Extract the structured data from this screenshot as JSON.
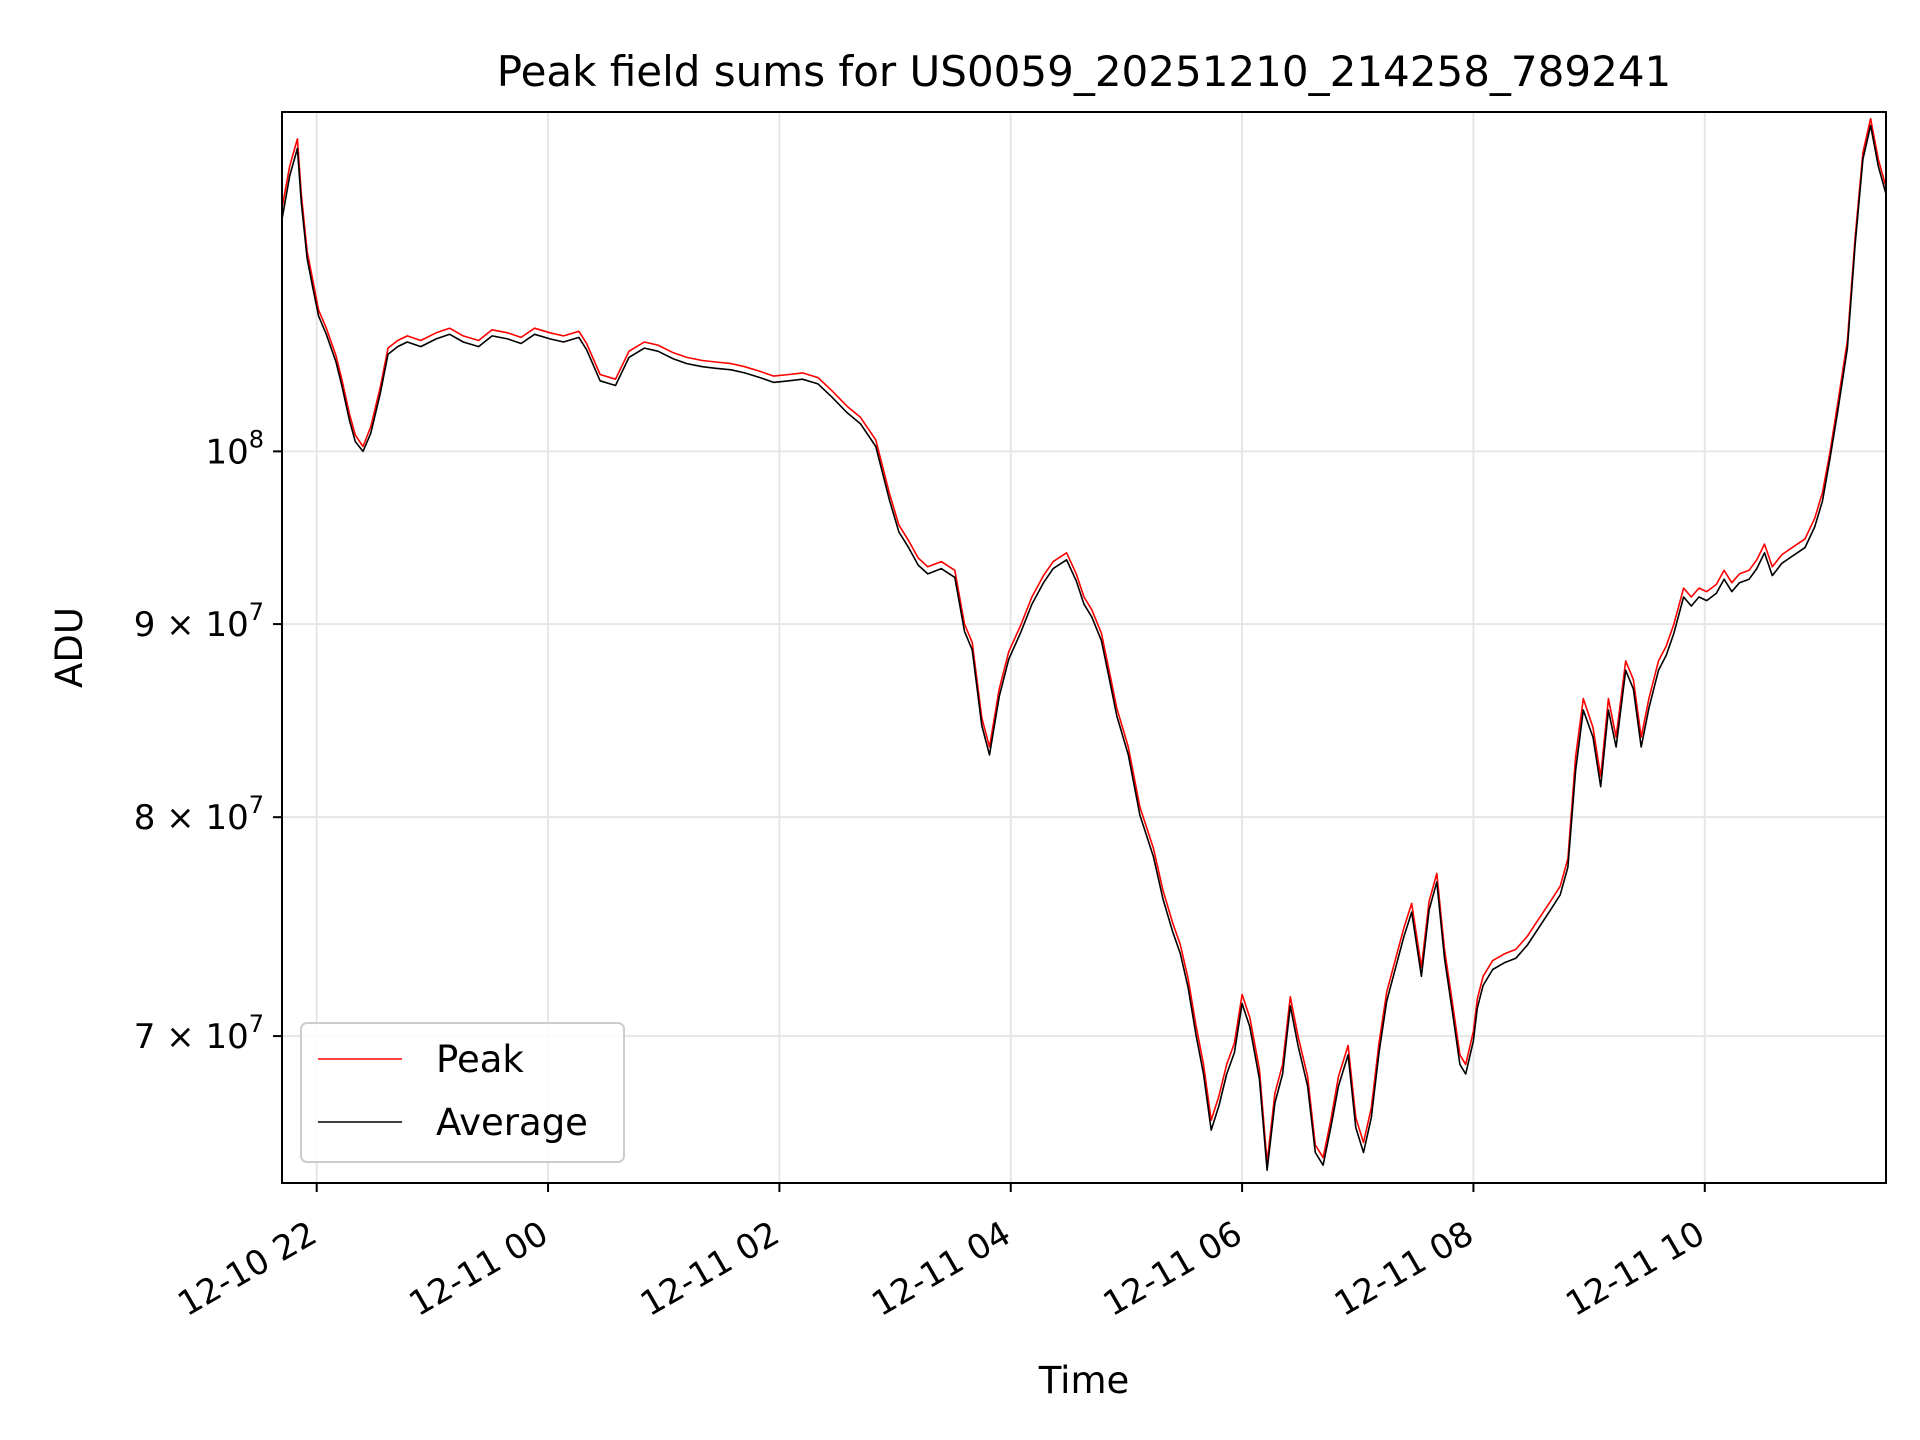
{
  "chart_data": {
    "type": "line",
    "title": "Peak field sums for US0059_20251210_214258_789241",
    "xlabel": "Time",
    "ylabel": "ADU",
    "y_scale": "log",
    "ylim": [
      64000000,
      123000000
    ],
    "xlim": [
      "2025-12-10T21:42",
      "2025-12-11T11:34"
    ],
    "grid": true,
    "legend": "lower-left",
    "x_ticks": [
      {
        "t": "2025-12-10T22:00",
        "label": "12-10 22"
      },
      {
        "t": "2025-12-11T00:00",
        "label": "12-11 00"
      },
      {
        "t": "2025-12-11T02:00",
        "label": "12-11 02"
      },
      {
        "t": "2025-12-11T04:00",
        "label": "12-11 04"
      },
      {
        "t": "2025-12-11T06:00",
        "label": "12-11 06"
      },
      {
        "t": "2025-12-11T08:00",
        "label": "12-11 08"
      },
      {
        "t": "2025-12-11T10:00",
        "label": "12-11 10"
      }
    ],
    "y_ticks": [
      {
        "v": 70000000,
        "label": "7 × 10^7"
      },
      {
        "v": 80000000,
        "label": "8 × 10^7"
      },
      {
        "v": 90000000,
        "label": "9 × 10^7"
      },
      {
        "v": 100000000,
        "label": "10^8"
      }
    ],
    "series": [
      {
        "name": "Peak",
        "color": "#ff0000"
      },
      {
        "name": "Average",
        "color": "#000000"
      }
    ],
    "x": [
      "2025-12-10T21:42",
      "2025-12-10T21:46",
      "2025-12-10T21:50",
      "2025-12-10T21:52",
      "2025-12-10T21:55",
      "2025-12-10T21:58",
      "2025-12-10T22:01",
      "2025-12-10T22:05",
      "2025-12-10T22:10",
      "2025-12-10T22:13",
      "2025-12-10T22:17",
      "2025-12-10T22:20",
      "2025-12-10T22:24",
      "2025-12-10T22:28",
      "2025-12-10T22:33",
      "2025-12-10T22:37",
      "2025-12-10T22:42",
      "2025-12-10T22:47",
      "2025-12-10T22:54",
      "2025-12-10T23:02",
      "2025-12-10T23:09",
      "2025-12-10T23:16",
      "2025-12-10T23:24",
      "2025-12-10T23:31",
      "2025-12-10T23:39",
      "2025-12-10T23:46",
      "2025-12-10T23:53",
      "2025-12-11T00:01",
      "2025-12-11T00:08",
      "2025-12-11T00:16",
      "2025-12-11T00:20",
      "2025-12-11T00:27",
      "2025-12-11T00:35",
      "2025-12-11T00:42",
      "2025-12-11T00:50",
      "2025-12-11T00:57",
      "2025-12-11T01:05",
      "2025-12-11T01:12",
      "2025-12-11T01:20",
      "2025-12-11T01:27",
      "2025-12-11T01:35",
      "2025-12-11T01:42",
      "2025-12-11T01:50",
      "2025-12-11T01:57",
      "2025-12-11T02:05",
      "2025-12-11T02:12",
      "2025-12-11T02:20",
      "2025-12-11T02:27",
      "2025-12-11T02:35",
      "2025-12-11T02:42",
      "2025-12-11T02:50",
      "2025-12-11T02:57",
      "2025-12-11T03:02",
      "2025-12-11T03:07",
      "2025-12-11T03:12",
      "2025-12-11T03:17",
      "2025-12-11T03:24",
      "2025-12-11T03:31",
      "2025-12-11T03:36",
      "2025-12-11T03:40",
      "2025-12-11T03:45",
      "2025-12-11T03:49",
      "2025-12-11T03:54",
      "2025-12-11T03:59",
      "2025-12-11T04:05",
      "2025-12-11T04:11",
      "2025-12-11T04:17",
      "2025-12-11T04:22",
      "2025-12-11T04:29",
      "2025-12-11T04:34",
      "2025-12-11T04:38",
      "2025-12-11T04:42",
      "2025-12-11T04:47",
      "2025-12-11T04:51",
      "2025-12-11T04:55",
      "2025-12-11T05:01",
      "2025-12-11T05:07",
      "2025-12-11T05:14",
      "2025-12-11T05:19",
      "2025-12-11T05:24",
      "2025-12-11T05:28",
      "2025-12-11T05:32",
      "2025-12-11T05:36",
      "2025-12-11T05:40",
      "2025-12-11T05:44",
      "2025-12-11T05:48",
      "2025-12-11T05:52",
      "2025-12-11T05:56",
      "2025-12-11T06:00",
      "2025-12-11T06:04",
      "2025-12-11T06:09",
      "2025-12-11T06:13",
      "2025-12-11T06:17",
      "2025-12-11T06:21",
      "2025-12-11T06:25",
      "2025-12-11T06:29",
      "2025-12-11T06:34",
      "2025-12-11T06:38",
      "2025-12-11T06:42",
      "2025-12-11T06:46",
      "2025-12-11T06:50",
      "2025-12-11T06:55",
      "2025-12-11T06:59",
      "2025-12-11T07:03",
      "2025-12-11T07:07",
      "2025-12-11T07:11",
      "2025-12-11T07:15",
      "2025-12-11T07:20",
      "2025-12-11T07:24",
      "2025-12-11T07:28",
      "2025-12-11T07:33",
      "2025-12-11T07:37",
      "2025-12-11T07:41",
      "2025-12-11T07:45",
      "2025-12-11T07:49",
      "2025-12-11T07:53",
      "2025-12-11T07:56",
      "2025-12-11T08:00",
      "2025-12-11T08:02",
      "2025-12-11T08:05",
      "2025-12-11T08:10",
      "2025-12-11T08:16",
      "2025-12-11T08:22",
      "2025-12-11T08:28",
      "2025-12-11T08:34",
      "2025-12-11T08:40",
      "2025-12-11T08:45",
      "2025-12-11T08:49",
      "2025-12-11T08:53",
      "2025-12-11T08:57",
      "2025-12-11T09:02",
      "2025-12-11T09:06",
      "2025-12-11T09:10",
      "2025-12-11T09:14",
      "2025-12-11T09:19",
      "2025-12-11T09:23",
      "2025-12-11T09:27",
      "2025-12-11T09:31",
      "2025-12-11T09:36",
      "2025-12-11T09:40",
      "2025-12-11T09:44",
      "2025-12-11T09:49",
      "2025-12-11T09:53",
      "2025-12-11T09:57",
      "2025-12-11T10:01",
      "2025-12-11T10:06",
      "2025-12-11T10:10",
      "2025-12-11T10:14",
      "2025-12-11T10:18",
      "2025-12-11T10:23",
      "2025-12-11T10:27",
      "2025-12-11T10:31",
      "2025-12-11T10:35",
      "2025-12-11T10:40",
      "2025-12-11T10:44",
      "2025-12-11T10:48",
      "2025-12-11T10:52",
      "2025-12-11T10:57",
      "2025-12-11T11:01",
      "2025-12-11T11:05",
      "2025-12-11T11:09",
      "2025-12-11T11:14",
      "2025-12-11T11:18",
      "2025-12-11T11:22",
      "2025-12-11T11:26",
      "2025-12-11T11:30",
      "2025-12-11T11:34"
    ],
    "peak": [
      116000000,
      119000000,
      121000000,
      117000000,
      113000000,
      111000000,
      109000000,
      107800000,
      106000000,
      104500000,
      102300000,
      101000000,
      100300000,
      101500000,
      104000000,
      106500000,
      107000000,
      107300000,
      107000000,
      107500000,
      107800000,
      107300000,
      107000000,
      107700000,
      107500000,
      107200000,
      107800000,
      107500000,
      107300000,
      107600000,
      106800000,
      104800000,
      104500000,
      106300000,
      106900000,
      106700000,
      106200000,
      105900000,
      105700000,
      105600000,
      105500000,
      105300000,
      105000000,
      104700000,
      104800000,
      104900000,
      104600000,
      103800000,
      102800000,
      102100000,
      100700000,
      97500000,
      95600000,
      94700000,
      93700000,
      93200000,
      93500000,
      93000000,
      90000000,
      89000000,
      85000000,
      83500000,
      86500000,
      88500000,
      89900000,
      91500000,
      92700000,
      93500000,
      94000000,
      92800000,
      91500000,
      90800000,
      89500000,
      87500000,
      85500000,
      83500000,
      80500000,
      78500000,
      76500000,
      75000000,
      74000000,
      72500000,
      70500000,
      68800000,
      66500000,
      67500000,
      68800000,
      69700000,
      71800000,
      70800000,
      68600000,
      64800000,
      67600000,
      68800000,
      71700000,
      70000000,
      68300000,
      65500000,
      65000000,
      66500000,
      68300000,
      69600000,
      66600000,
      65600000,
      67000000,
      69700000,
      71900000,
      73500000,
      74800000,
      75900000,
      73000000,
      76000000,
      77300000,
      73800000,
      71500000,
      69200000,
      68800000,
      70200000,
      71600000,
      72600000,
      73300000,
      73600000,
      73800000,
      74400000,
      75200000,
      76000000,
      76700000,
      78000000,
      83000000,
      86000000,
      84500000,
      82000000,
      86000000,
      84000000,
      88000000,
      87000000,
      84000000,
      86000000,
      88000000,
      88800000,
      90000000,
      92000000,
      91500000,
      92000000,
      91800000,
      92200000,
      93000000,
      92300000,
      92800000,
      93000000,
      93600000,
      94500000,
      93200000,
      93900000,
      94200000,
      94500000,
      94800000,
      96000000,
      97500000,
      100000000,
      103000000,
      107000000,
      114000000,
      120000000,
      122500000,
      119500000,
      117500000
    ],
    "average": [
      115200000,
      118300000,
      120300000,
      116400000,
      112500000,
      110500000,
      108600000,
      107400000,
      105600000,
      104100000,
      101900000,
      100600000,
      100000000,
      101100000,
      103600000,
      106100000,
      106600000,
      106900000,
      106600000,
      107100000,
      107400000,
      106900000,
      106600000,
      107300000,
      107100000,
      106800000,
      107400000,
      107100000,
      106900000,
      107200000,
      106400000,
      104400000,
      104100000,
      105900000,
      106500000,
      106300000,
      105800000,
      105500000,
      105300000,
      105200000,
      105100000,
      104900000,
      104600000,
      104300000,
      104400000,
      104500000,
      104200000,
      103400000,
      102400000,
      101700000,
      100300000,
      97100000,
      95200000,
      94300000,
      93300000,
      92800000,
      93100000,
      92600000,
      89600000,
      88600000,
      84600000,
      83100000,
      86100000,
      88100000,
      89500000,
      91100000,
      92300000,
      93100000,
      93600000,
      92400000,
      91100000,
      90400000,
      89100000,
      87100000,
      85100000,
      83100000,
      80100000,
      78100000,
      76100000,
      74600000,
      73600000,
      72100000,
      70100000,
      68400000,
      66100000,
      67100000,
      68400000,
      69300000,
      71400000,
      70400000,
      68200000,
      64500000,
      67200000,
      68400000,
      71300000,
      69600000,
      67900000,
      65200000,
      64700000,
      66200000,
      67900000,
      69200000,
      66200000,
      65200000,
      66600000,
      69300000,
      71500000,
      73100000,
      74400000,
      75500000,
      72600000,
      75600000,
      76900000,
      73400000,
      71100000,
      68800000,
      68400000,
      69800000,
      71200000,
      72200000,
      72900000,
      73200000,
      73400000,
      74000000,
      74800000,
      75600000,
      76300000,
      77600000,
      82300000,
      85400000,
      84000000,
      81500000,
      85400000,
      83500000,
      87500000,
      86500000,
      83500000,
      85500000,
      87500000,
      88300000,
      89500000,
      91500000,
      91000000,
      91500000,
      91300000,
      91700000,
      92500000,
      91800000,
      92300000,
      92500000,
      93100000,
      94000000,
      92700000,
      93400000,
      93700000,
      94000000,
      94300000,
      95500000,
      97000000,
      99600000,
      102500000,
      106500000,
      113500000,
      119500000,
      122000000,
      119000000,
      117000000
    ]
  }
}
